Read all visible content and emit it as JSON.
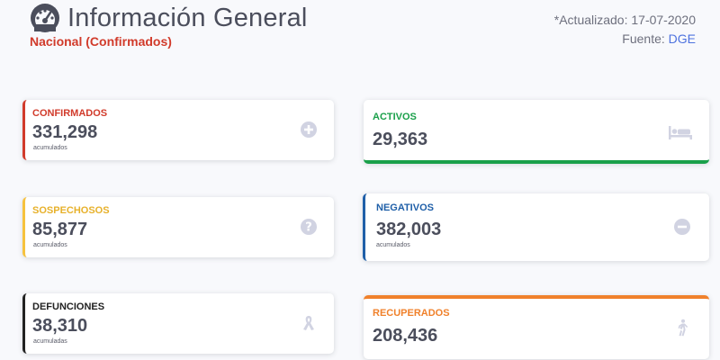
{
  "header": {
    "title": "Información General",
    "subtitle": "Nacional (Confirmados)",
    "updated_text": "*Actualizado: 17-07-2020",
    "source_prefix": "Fuente: ",
    "source_link": "DGE",
    "icon": "gauge-icon"
  },
  "cards": {
    "confirmados": {
      "label": "CONFIRMADOS",
      "value": "331,298",
      "sub": "acumulados",
      "color": "#d13b2b",
      "icon": "plus-circle-icon"
    },
    "sospechosos": {
      "label": "SOSPECHOSOS",
      "value": "85,877",
      "sub": "acumulados",
      "color": "#f6c23e",
      "icon": "question-circle-icon"
    },
    "defunciones": {
      "label": "DEFUNCIONES",
      "value": "38,310",
      "sub": "acumuladas",
      "color": "#222222",
      "icon": "ribbon-icon"
    },
    "activos": {
      "label": "ACTIVOS",
      "value": "29,363",
      "color": "#1aa04a",
      "icon": "bed-icon"
    },
    "negativos": {
      "label": "NEGATIVOS",
      "value": "382,003",
      "sub": "acumulados",
      "color": "#1f5fa8",
      "icon": "minus-circle-icon"
    },
    "recuperados": {
      "label": "RECUPERADOS",
      "value": "208,436",
      "color": "#f0812b",
      "icon": "walking-icon"
    }
  }
}
